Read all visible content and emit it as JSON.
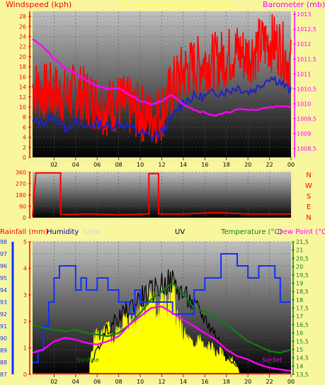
{
  "chart_data": [
    {
      "type": "line",
      "left_label": "Windspeed (kph)",
      "center_label": "24 hour graph date: 24 Wrzesień 2010",
      "right_label": "Barometer (mb)",
      "y_ticks": [
        0,
        2,
        4,
        6,
        8,
        10,
        12,
        14,
        16,
        18,
        20,
        22,
        24,
        26,
        28
      ],
      "ylim": [
        0,
        29
      ],
      "y2_ticks": [
        "1008,5",
        "1009",
        "1009,5",
        "1010",
        "1010,5",
        "1011",
        "1011,5",
        "1012",
        "1012,5",
        "1013"
      ],
      "y2lim": [
        1008.2,
        1013.1
      ],
      "x_ticks": [
        "02",
        "04",
        "06",
        "08",
        "10",
        "12",
        "14",
        "16",
        "18",
        "20",
        "22",
        "00"
      ],
      "hours": [
        0,
        1,
        2,
        3,
        4,
        5,
        6,
        7,
        8,
        9,
        10,
        11,
        12,
        13,
        14,
        15,
        16,
        17,
        18,
        19,
        20,
        21,
        22,
        23,
        24
      ],
      "series": [
        {
          "key": "gust",
          "color": "#ff0000",
          "values": [
            14,
            13,
            13,
            12,
            13,
            12,
            11,
            10,
            11,
            10,
            9,
            8,
            9,
            14,
            17,
            18,
            19,
            19,
            20,
            21,
            20,
            22,
            23,
            22,
            18
          ]
        },
        {
          "key": "average",
          "color": "#2020c8",
          "values": [
            7,
            7,
            8,
            6,
            7,
            6,
            7,
            6,
            7,
            6,
            5,
            4,
            5,
            8,
            11,
            12,
            12,
            13,
            13,
            14,
            13,
            14,
            16,
            15,
            13
          ]
        },
        {
          "key": "barometer",
          "color": "#ff00ff",
          "values": [
            1012.2,
            1011.9,
            1011.5,
            1011.2,
            1011.0,
            1010.8,
            1010.6,
            1010.5,
            1010.5,
            1010.3,
            1010.1,
            1010.0,
            1010.1,
            1010.3,
            1010.0,
            1009.8,
            1009.7,
            1009.6,
            1009.7,
            1009.8,
            1009.8,
            1009.8,
            1009.9,
            1009.9,
            1009.9
          ]
        }
      ]
    },
    {
      "type": "line",
      "y_ticks": [
        0,
        90,
        180,
        270,
        360
      ],
      "ylim": [
        0,
        360
      ],
      "x_ticks": [
        "02",
        "04",
        "06",
        "08",
        "10",
        "12",
        "14",
        "16",
        "18",
        "20",
        "22",
        "00"
      ],
      "compass_labels": [
        "N",
        "W",
        "S",
        "E",
        "N"
      ],
      "series": [
        {
          "key": "wind-direction",
          "color": "#ff0000",
          "x": [
            0,
            0.3,
            0.3,
            2.6,
            2.6,
            5,
            8,
            10.8,
            10.8,
            11.7,
            11.7,
            14,
            17,
            20,
            24
          ],
          "values": [
            10,
            350,
            355,
            355,
            25,
            30,
            25,
            30,
            350,
            350,
            30,
            30,
            40,
            30,
            30
          ]
        }
      ]
    },
    {
      "type": "line",
      "labels": {
        "rainfall": "Rainfall (mm)",
        "humidity": "Humidity",
        "solar": "Solar",
        "uv": "UV",
        "temperature": "Temperature (°C)",
        "dewpoint": "Dew Point (°C"
      },
      "rain_ticks": [
        "0",
        "1",
        "2",
        "3",
        "4",
        "5"
      ],
      "rain_max": 5,
      "humidity_ticks": [
        87,
        88,
        89,
        90,
        91,
        92,
        93,
        94,
        95,
        96,
        97,
        98
      ],
      "humidity_lim": [
        87,
        98
      ],
      "temp_ticks": [
        "13,5",
        "14",
        "14,5",
        "15",
        "15,5",
        "16",
        "16,5",
        "17",
        "17,5",
        "18",
        "18,5",
        "19",
        "19,5",
        "20",
        "20,5",
        "21",
        "21,5"
      ],
      "temp_lim": [
        13.5,
        21.5
      ],
      "x_ticks": [
        "02",
        "04",
        "06",
        "08",
        "10",
        "12",
        "14",
        "16",
        "18",
        "20",
        "22",
        "00"
      ],
      "sunrise_label": "SunRise",
      "sunset_label": "SunSet",
      "sunrise_hour": 5.3,
      "sunset_hour": 19.2,
      "series": [
        {
          "key": "humidity",
          "color": "#1030ff",
          "x": [
            0,
            0.5,
            1,
            1.5,
            2,
            2.5,
            3,
            4,
            4.5,
            5,
            6,
            7,
            8,
            9,
            9.5,
            10,
            11,
            12,
            13,
            14,
            15,
            16,
            17,
            17.5,
            18,
            19,
            20,
            21,
            22,
            22.5,
            23,
            24
          ],
          "values": [
            88,
            89,
            91,
            93,
            95,
            96,
            96,
            94,
            95,
            94,
            95,
            94,
            93,
            92,
            94,
            93,
            93,
            93,
            92,
            92,
            94,
            95,
            95,
            97,
            97,
            96,
            95,
            96,
            96,
            95,
            93,
            93
          ]
        },
        {
          "key": "temperature",
          "color": "#108010",
          "values": [
            16.5,
            16.3,
            16.2,
            16.1,
            16.2,
            16.0,
            15.9,
            15.8,
            16.0,
            16.5,
            17.2,
            18.0,
            18.5,
            19.0,
            18.4,
            17.5,
            17.3,
            16.9,
            16.5,
            16.0,
            15.5,
            15.2,
            14.9,
            14.8,
            15.0
          ]
        },
        {
          "key": "dewpoint",
          "color": "#ff00ff",
          "values": [
            14.8,
            15.0,
            15.5,
            15.7,
            15.6,
            15.4,
            15.3,
            15.5,
            15.8,
            16.5,
            17.0,
            17.5,
            17.6,
            17.2,
            16.8,
            16.4,
            16.0,
            15.6,
            15.0,
            14.6,
            14.4,
            14.1,
            13.9,
            13.8,
            13.7
          ]
        },
        {
          "key": "solar",
          "color": "#ffff00",
          "x": [
            5.3,
            5.8,
            6.5,
            7,
            7.5,
            8,
            8.5,
            9,
            9.5,
            10,
            10.5,
            11,
            11.5,
            12,
            12.5,
            13,
            13.5,
            14,
            14.5,
            15,
            15.5,
            16,
            16.5,
            17,
            17.5,
            18,
            18.5,
            19,
            19.2
          ],
          "values": [
            0.08,
            0.3,
            0.28,
            0.35,
            0.25,
            0.36,
            0.4,
            0.42,
            0.38,
            0.55,
            0.5,
            0.6,
            0.48,
            0.58,
            0.5,
            0.62,
            0.4,
            0.3,
            0.26,
            0.2,
            0.28,
            0.18,
            0.22,
            0.15,
            0.18,
            0.1,
            0.12,
            0.05,
            0.02
          ]
        },
        {
          "key": "uv",
          "color": "#000000",
          "x": [
            5.5,
            7,
            8,
            9,
            10,
            11,
            12,
            13,
            14,
            15,
            16,
            17,
            18,
            19
          ],
          "values": [
            0.1,
            0.35,
            0.42,
            0.5,
            0.58,
            0.62,
            0.68,
            0.7,
            0.6,
            0.52,
            0.42,
            0.3,
            0.15,
            0.05
          ]
        }
      ]
    }
  ]
}
